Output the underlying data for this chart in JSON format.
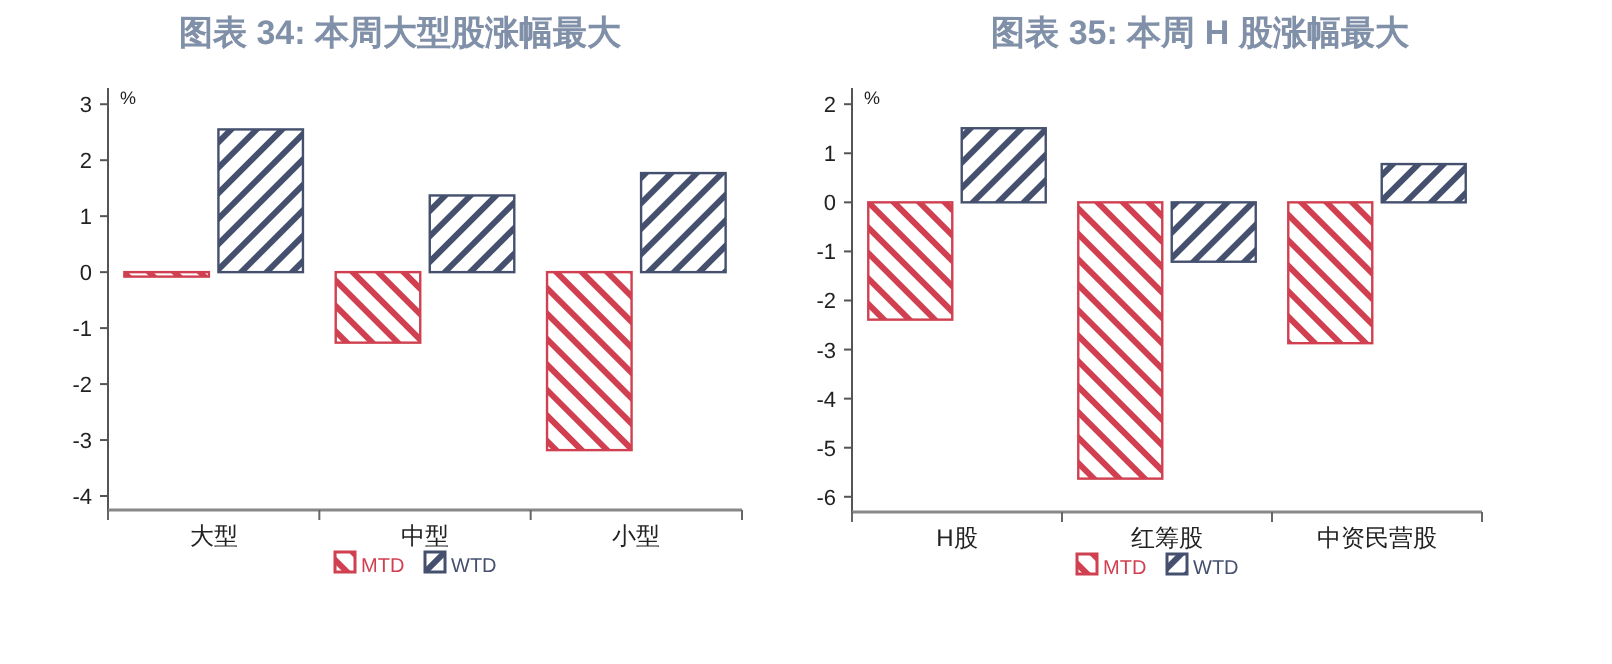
{
  "chart_data": [
    {
      "type": "bar",
      "title": "图表 34: 本周大型股涨幅最大",
      "ylabel": "%",
      "categories": [
        "大型",
        "中型",
        "小型"
      ],
      "series": [
        {
          "name": "MTD",
          "color": "#d04050",
          "values": [
            -0.08,
            -1.26,
            -3.18
          ]
        },
        {
          "name": "WTD",
          "color": "#44506e",
          "values": [
            2.55,
            1.37,
            1.77
          ]
        }
      ],
      "ylim": [
        -4.25,
        3.29
      ],
      "yticks": [
        -4,
        -3,
        -2,
        -1,
        0,
        1,
        2,
        3
      ],
      "legend": "bottom"
    },
    {
      "type": "bar",
      "title": "图表 35: 本周 H 股涨幅最大",
      "ylabel": "%",
      "categories": [
        "H股",
        "红筹股",
        "中资民营股"
      ],
      "series": [
        {
          "name": "MTD",
          "color": "#d04050",
          "values": [
            -2.39,
            -5.63,
            -2.87
          ]
        },
        {
          "name": "WTD",
          "color": "#44506e",
          "values": [
            1.51,
            -1.21,
            0.78
          ]
        }
      ],
      "ylim": [
        -6.31,
        2.33
      ],
      "yticks": [
        -6,
        -5,
        -4,
        -3,
        -2,
        -1,
        0,
        1,
        2
      ],
      "legend": "bottom"
    }
  ]
}
